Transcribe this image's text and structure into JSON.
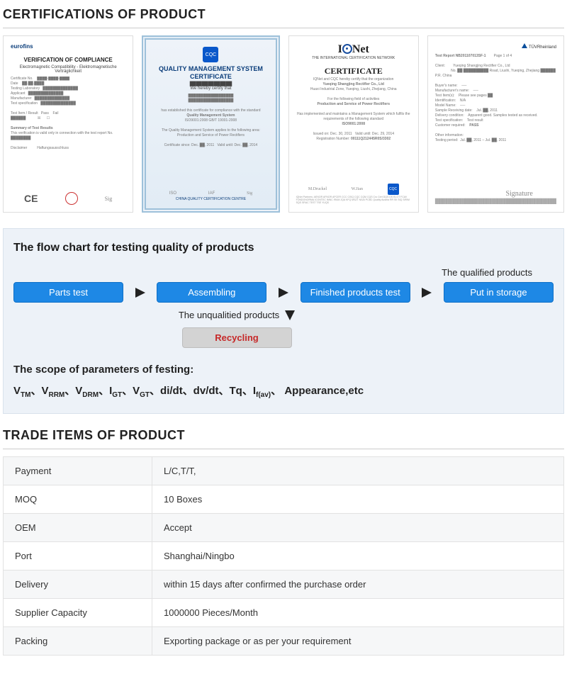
{
  "sections": {
    "cert_title": "CERTIFICATIONS OF PRODUCT",
    "trade_title": "TRADE ITEMS OF PRODUCT"
  },
  "certs": [
    {
      "brand": "eurofins",
      "title": "VERIFICATION OF COMPLIANCE",
      "sub": "Electromagnetic Compatibility - Elektromagnetische Verträglichkeit",
      "foot_mark": "CE"
    },
    {
      "brand": "CQC",
      "title": "QUALITY MANAGEMENT SYSTEM CERTIFICATE",
      "sub": "We hereby certify that",
      "body_main": "Quality Management System",
      "std": "ISO9001:2008   GB/T 19001-2008",
      "footer": "CHINA QUALITY CERTIFICATION CENTRE"
    },
    {
      "brand_html": "IQNet",
      "sub": "THE INTERNATIONAL CERTIFICATION NETWORK",
      "title": "CERTIFICATE",
      "body1": "IQNet and CQC hereby certify that the organization",
      "org": "Yueqing Shangjing Rectifier Co., Ltd",
      "body2": "For the following field of activities",
      "body3": "Has implemented and maintains a Management System which fulfils the requirements of the following standard",
      "std": "ISO9001:2008"
    },
    {
      "brand": "TÜVRheinland",
      "report": "Test Report   NB201107013SF-1"
    }
  ],
  "flow": {
    "title": "The flow chart for testing quality of products",
    "qualified_label": "The qualified products",
    "unqualified_label": "The unqualitied products",
    "boxes": {
      "parts": "Parts test",
      "assembling": "Assembling",
      "finished": "Finished products test",
      "storage": "Put in storage",
      "recycling": "Recycling"
    },
    "scope_title": "The scope of parameters of festing:",
    "scope_params_tail": " Appearance,etc",
    "colors": {
      "btn_bg": "#1e88e5",
      "btn_border": "#0d6fc7",
      "grey_bg": "#d3d3d3",
      "recycling_text": "#c62828",
      "panel_bg": "#edf2f8"
    }
  },
  "trade": [
    {
      "key": "Payment",
      "val": "L/C,T/T,"
    },
    {
      "key": "MOQ",
      "val": "10 Boxes"
    },
    {
      "key": "OEM",
      "val": "Accept"
    },
    {
      "key": "Port",
      "val": "Shanghai/Ningbo"
    },
    {
      "key": "Delivery",
      "val": "within 15 days after confirmed the purchase order"
    },
    {
      "key": "Supplier Capacity",
      "val": "1000000 Pieces/Month"
    },
    {
      "key": "Packing",
      "val": "Exporting package or as per your requirement"
    }
  ]
}
